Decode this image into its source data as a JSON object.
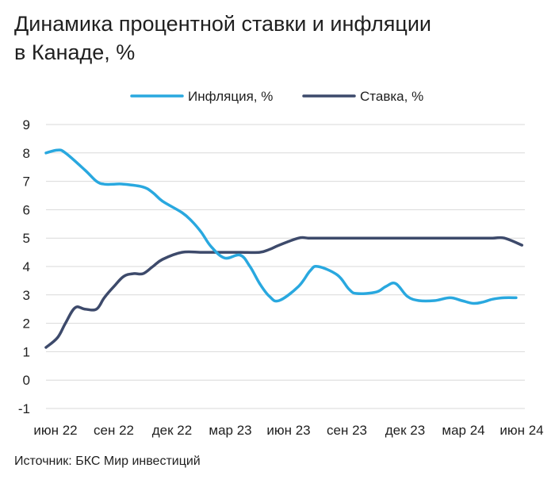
{
  "title_line1": "Динамика процентной ставки и инфляции",
  "title_line2": "в Канаде, %",
  "source": "Источник: БКС Мир инвестиций",
  "chart_data": {
    "type": "line",
    "title": "Динамика процентной ставки и инфляции в Канаде, %",
    "xlabel": "",
    "ylabel": "",
    "ylim": [
      -1,
      9
    ],
    "yticks": [
      "9",
      "8",
      "7",
      "6",
      "5",
      "4",
      "3",
      "2",
      "1",
      "0",
      "-1"
    ],
    "xticks": [
      "июн 22",
      "сен 22",
      "дек 22",
      "мар 23",
      "июн 23",
      "сен 23",
      "дек 23",
      "мар 24",
      "июн 24"
    ],
    "grid": true,
    "legend_position": "top",
    "series": [
      {
        "name": "Инфляция, %",
        "color": "#29a8df",
        "x": [
          0,
          0.6,
          1,
          2,
          2.6,
          3,
          3.5,
          4,
          5,
          5.5,
          6,
          7,
          7.5,
          8,
          8.5,
          9.2,
          10,
          10.5,
          11,
          11.5,
          12,
          13,
          13.6,
          14,
          15,
          15.6,
          16,
          17,
          17.5,
          18,
          18.6,
          19.2,
          20,
          20.8,
          21.4,
          22,
          22.5,
          23,
          23.6,
          24.2
        ],
        "values": [
          8.0,
          8.1,
          8.0,
          7.4,
          7.0,
          6.9,
          6.9,
          6.9,
          6.8,
          6.6,
          6.3,
          5.9,
          5.6,
          5.2,
          4.7,
          4.3,
          4.4,
          4.0,
          3.4,
          2.95,
          2.8,
          3.3,
          3.85,
          4.0,
          3.7,
          3.2,
          3.05,
          3.1,
          3.3,
          3.4,
          2.95,
          2.8,
          2.8,
          2.9,
          2.8,
          2.7,
          2.75,
          2.85,
          2.9,
          2.9
        ]
      },
      {
        "name": "Ставка, %",
        "color": "#3d4a6b",
        "x": [
          0,
          0.6,
          1,
          1.5,
          2,
          2.6,
          3,
          3.5,
          4,
          4.5,
          5,
          5.5,
          6,
          7,
          8,
          9,
          10,
          11,
          11.5,
          12,
          13,
          13.5,
          14,
          16,
          18,
          20,
          22,
          23,
          23.6,
          24.5
        ],
        "values": [
          1.15,
          1.5,
          2.0,
          2.55,
          2.5,
          2.5,
          2.9,
          3.3,
          3.65,
          3.75,
          3.75,
          4.0,
          4.25,
          4.5,
          4.5,
          4.5,
          4.5,
          4.5,
          4.6,
          4.75,
          5.0,
          5.0,
          5.0,
          5.0,
          5.0,
          5.0,
          5.0,
          5.0,
          5.0,
          4.75
        ]
      }
    ]
  }
}
